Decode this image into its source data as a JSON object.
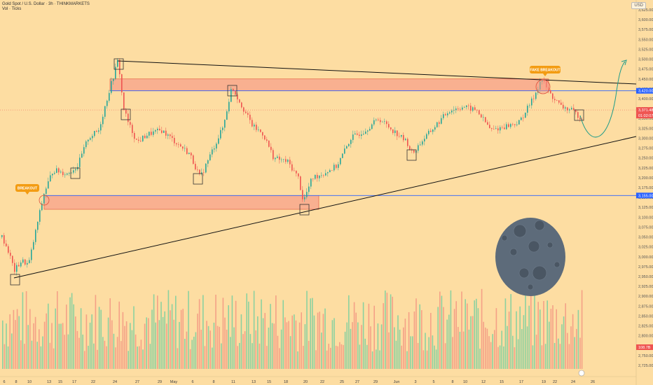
{
  "header": {
    "symbol_line": "Gold Spot / U.S. Dollar · 3h · THINKMARKETS",
    "volume_line": "Vol · Ticks"
  },
  "currency_badge": "USD",
  "price_axis": {
    "ticks": [
      "3,625.00",
      "3,600.00",
      "3,575.00",
      "3,550.00",
      "3,525.00",
      "3,500.00",
      "3,475.00",
      "3,450.00",
      "3,425.00",
      "3,400.00",
      "3,375.00",
      "3,350.00",
      "3,325.00",
      "3,300.00",
      "3,275.00",
      "3,250.00",
      "3,225.00",
      "3,200.00",
      "3,175.00",
      "3,150.00",
      "3,125.00",
      "3,100.00",
      "3,075.00",
      "3,050.00",
      "3,025.00",
      "3,000.00",
      "2,975.00",
      "2,950.00",
      "2,925.00",
      "2,900.00",
      "2,875.00",
      "2,850.00",
      "2,825.00",
      "2,800.00",
      "2,775.00",
      "2,750.00",
      "2,725.00"
    ],
    "top_value": 3625,
    "bottom_value": 2725,
    "labels": {
      "level_upper": "3,420.00",
      "current_price": "3,371.48",
      "countdown": "01:02:07",
      "level_lower": "3,155.00",
      "volume": "108.7B"
    }
  },
  "time_axis": [
    "6",
    "8",
    "10",
    "13",
    "15",
    "17",
    "22",
    "24",
    "27",
    "29",
    "May",
    "6",
    "8",
    "11",
    "13",
    "15",
    "18",
    "20",
    "22",
    "25",
    "27",
    "29",
    "Jun",
    "3",
    "5",
    "8",
    "10",
    "12",
    "15",
    "17",
    "19",
    "22",
    "24",
    "26"
  ],
  "annotations": {
    "breakout": "BREAKOUT",
    "fake_breakout": "FAKE BREAKOUT"
  },
  "levels": {
    "upper_zone": [
      3420,
      3450
    ],
    "lower_zone": [
      3120,
      3155
    ],
    "current": 3371.48
  },
  "colors": {
    "background": "#FDDDA2",
    "up": "#26A69A",
    "down": "#EF5350",
    "zone": "#F7A08A",
    "level_line": "#2962FF",
    "tag": "#F39C12",
    "moon": "#5D6B7A"
  },
  "icons": {
    "moon": "moon-illustration-icon"
  }
}
